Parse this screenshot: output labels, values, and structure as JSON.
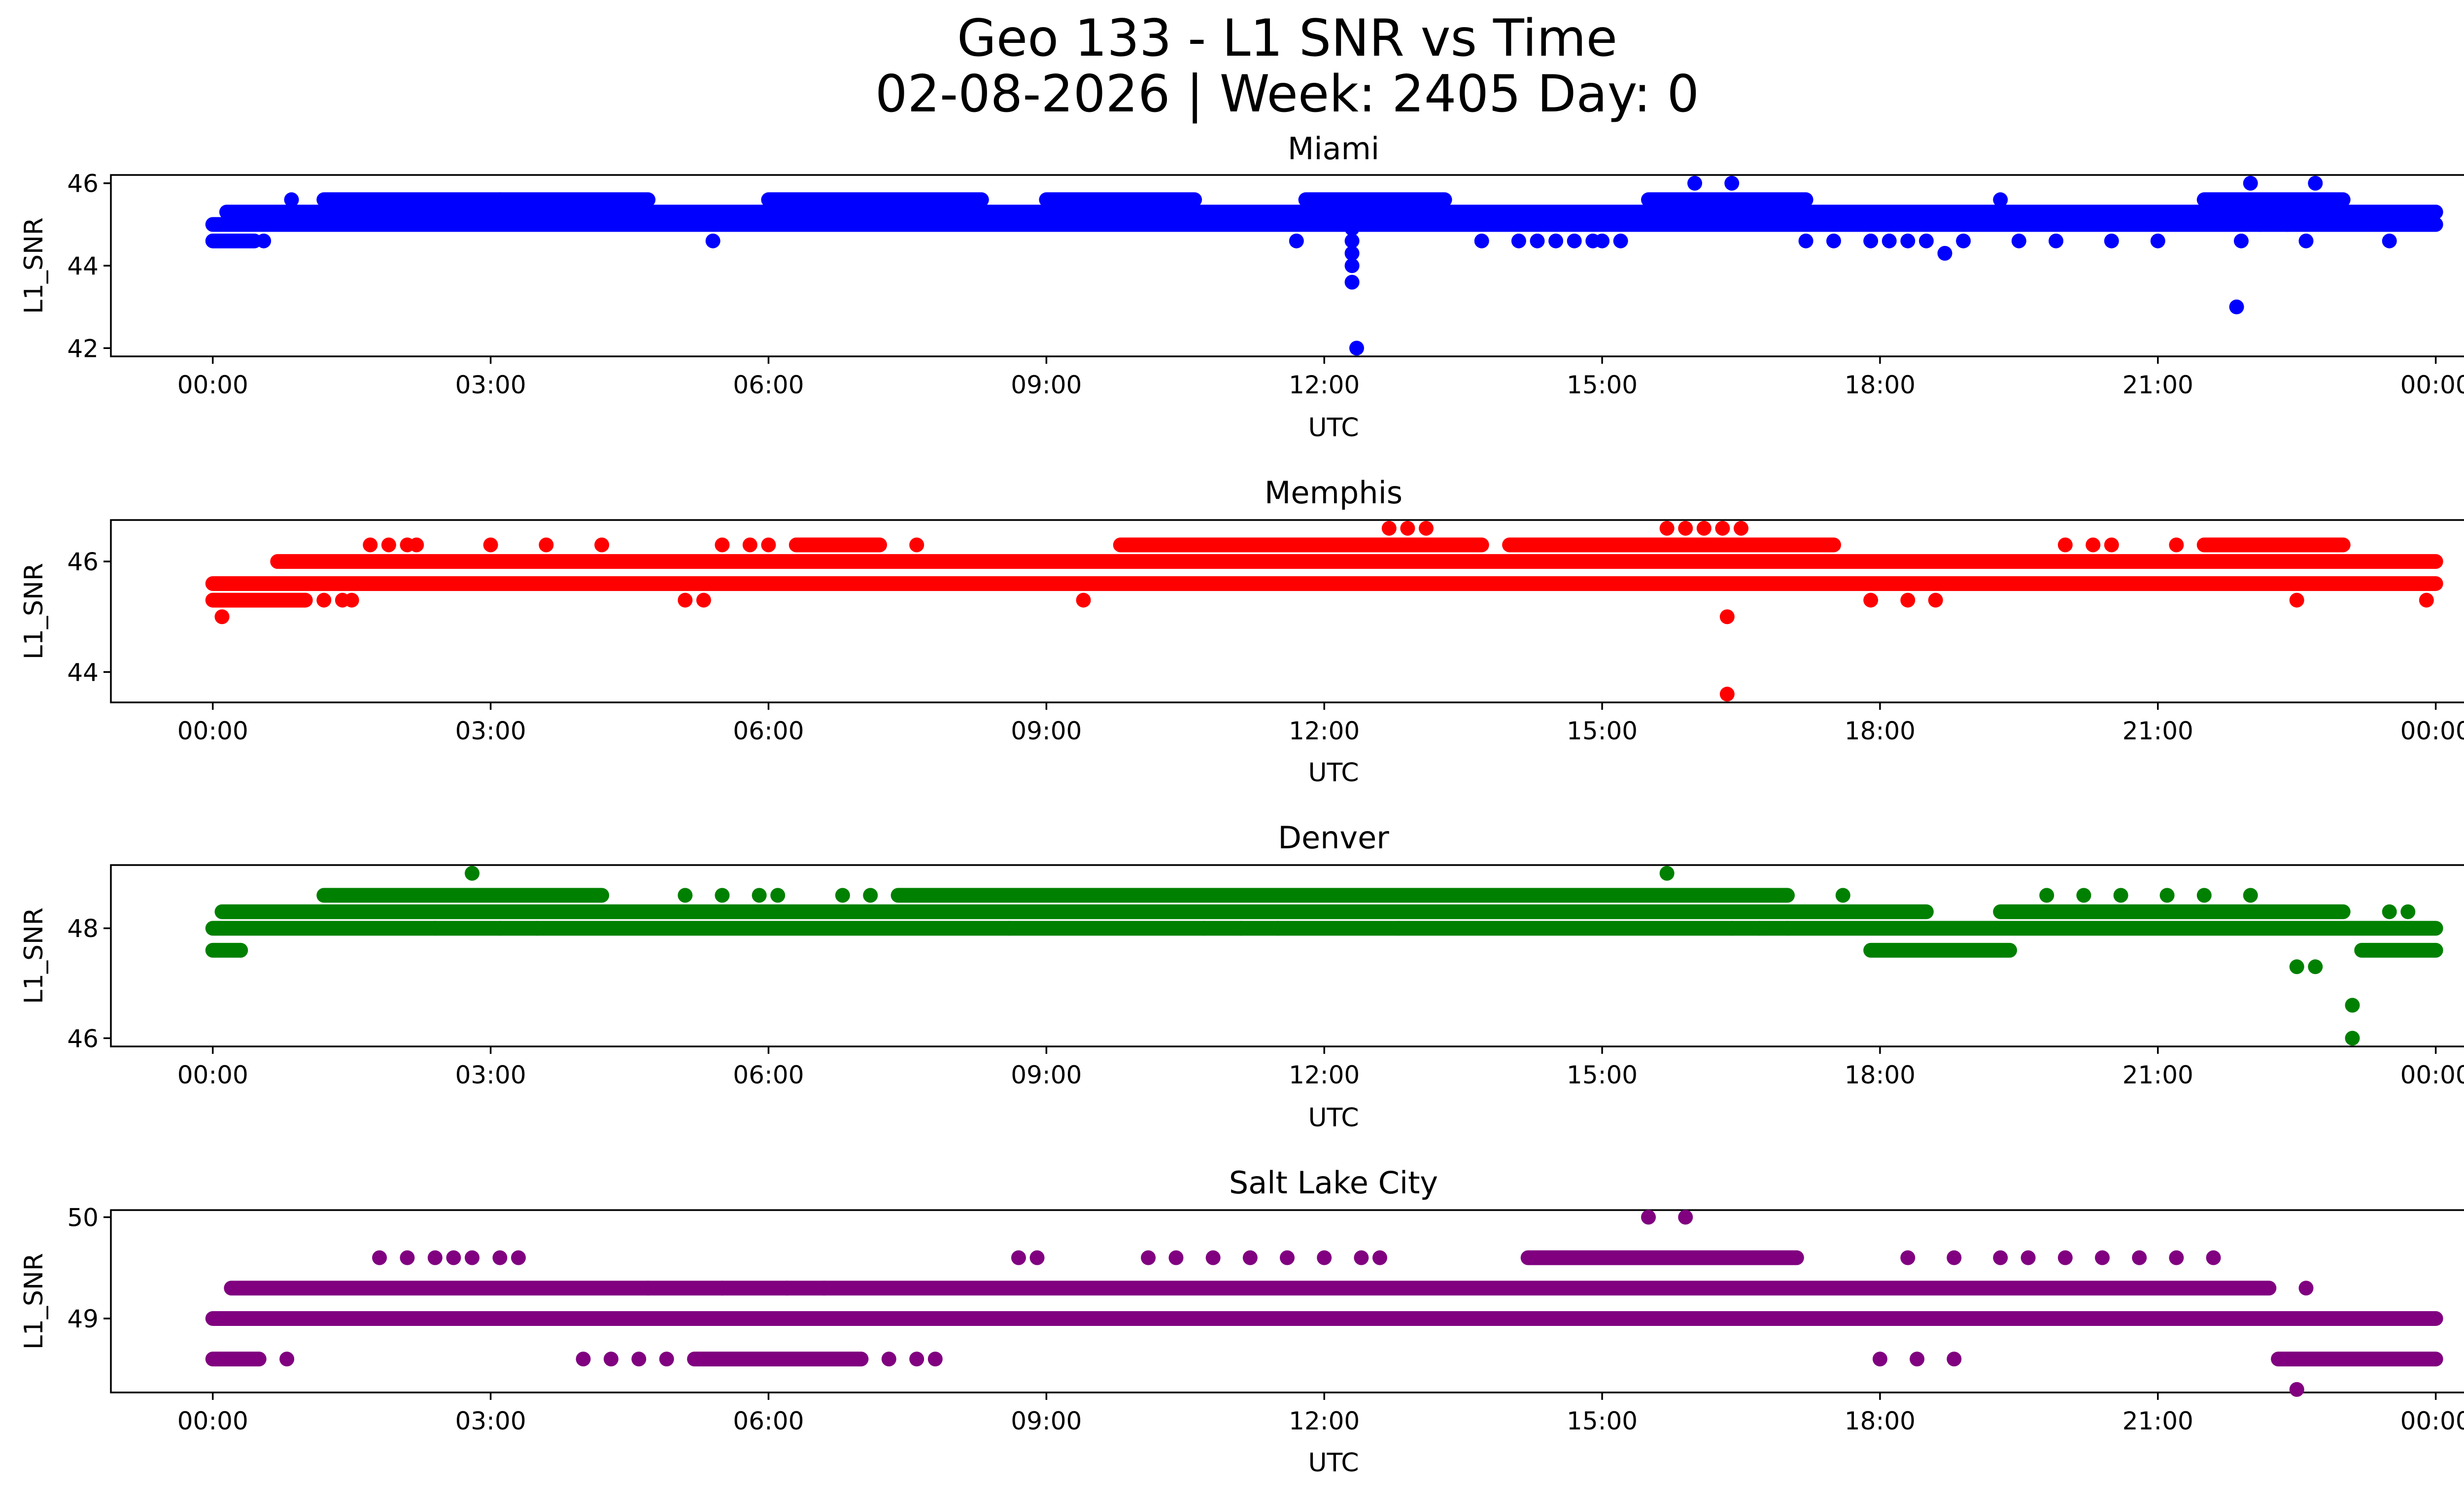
{
  "title_line1": "Geo 133 - L1 SNR vs Time",
  "title_line2": "02-08-2026 | Week: 2405 Day: 0",
  "chart_data": [
    {
      "type": "scatter",
      "title": "Miami",
      "color": "#0000ff",
      "xlabel": "UTC",
      "ylabel": "L1_SNR",
      "xlim": [
        -1.1,
        25.3
      ],
      "ylim": [
        41.8,
        46.2
      ],
      "yticks": [
        42,
        44,
        46
      ],
      "ytick_labels": [
        "42",
        "44",
        "46"
      ],
      "xticks": [
        0,
        3,
        6,
        9,
        12,
        15,
        18,
        21,
        24
      ],
      "xtick_labels": [
        "00:00",
        "03:00",
        "06:00",
        "09:00",
        "12:00",
        "15:00",
        "18:00",
        "21:00",
        "00:00"
      ],
      "bands": [
        {
          "y": 45.0,
          "from": 0.0,
          "to": 24.0
        },
        {
          "y": 45.3,
          "from": 0.15,
          "to": 24.0
        },
        {
          "y": 45.6,
          "from": 1.2,
          "to": 4.7
        },
        {
          "y": 45.6,
          "from": 6.0,
          "to": 8.3
        },
        {
          "y": 45.6,
          "from": 9.0,
          "to": 10.6
        },
        {
          "y": 45.6,
          "from": 11.8,
          "to": 13.3
        },
        {
          "y": 45.6,
          "from": 15.5,
          "to": 17.2
        },
        {
          "y": 45.6,
          "from": 21.5,
          "to": 23.0
        },
        {
          "y": 44.6,
          "from": 0.0,
          "to": 0.45
        }
      ],
      "points": [
        {
          "x": 0.55,
          "y": 44.6
        },
        {
          "x": 0.85,
          "y": 45.6
        },
        {
          "x": 3.1,
          "y": 45.6
        },
        {
          "x": 5.4,
          "y": 44.6
        },
        {
          "x": 11.7,
          "y": 44.6
        },
        {
          "x": 12.3,
          "y": 44.9
        },
        {
          "x": 12.3,
          "y": 44.6
        },
        {
          "x": 12.3,
          "y": 44.3
        },
        {
          "x": 12.3,
          "y": 44.0
        },
        {
          "x": 12.3,
          "y": 43.6
        },
        {
          "x": 12.35,
          "y": 42.0
        },
        {
          "x": 13.7,
          "y": 44.6
        },
        {
          "x": 14.1,
          "y": 44.6
        },
        {
          "x": 14.3,
          "y": 44.6
        },
        {
          "x": 14.5,
          "y": 44.6
        },
        {
          "x": 14.7,
          "y": 44.6
        },
        {
          "x": 14.9,
          "y": 44.6
        },
        {
          "x": 15.0,
          "y": 44.6
        },
        {
          "x": 15.2,
          "y": 44.6
        },
        {
          "x": 16.0,
          "y": 46.0
        },
        {
          "x": 16.4,
          "y": 46.0
        },
        {
          "x": 17.2,
          "y": 44.6
        },
        {
          "x": 17.5,
          "y": 44.6
        },
        {
          "x": 17.9,
          "y": 44.6
        },
        {
          "x": 18.1,
          "y": 44.6
        },
        {
          "x": 18.3,
          "y": 44.6
        },
        {
          "x": 18.5,
          "y": 44.6
        },
        {
          "x": 18.7,
          "y": 44.3
        },
        {
          "x": 18.9,
          "y": 44.6
        },
        {
          "x": 19.3,
          "y": 45.6
        },
        {
          "x": 19.5,
          "y": 44.6
        },
        {
          "x": 19.9,
          "y": 44.6
        },
        {
          "x": 20.5,
          "y": 44.6
        },
        {
          "x": 21.0,
          "y": 44.6
        },
        {
          "x": 21.9,
          "y": 44.6
        },
        {
          "x": 21.85,
          "y": 43.0
        },
        {
          "x": 22.0,
          "y": 46.0
        },
        {
          "x": 22.1,
          "y": 45.0
        },
        {
          "x": 22.4,
          "y": 45.0
        },
        {
          "x": 22.6,
          "y": 44.6
        },
        {
          "x": 22.7,
          "y": 46.0
        },
        {
          "x": 23.5,
          "y": 44.6
        }
      ]
    },
    {
      "type": "scatter",
      "title": "Memphis",
      "color": "#ff0000",
      "xlabel": "UTC",
      "ylabel": "L1_SNR",
      "xlim": [
        -1.1,
        25.3
      ],
      "ylim": [
        43.45,
        46.75
      ],
      "yticks": [
        44,
        46
      ],
      "ytick_labels": [
        "44",
        "46"
      ],
      "xticks": [
        0,
        3,
        6,
        9,
        12,
        15,
        18,
        21,
        24
      ],
      "xtick_labels": [
        "00:00",
        "03:00",
        "06:00",
        "09:00",
        "12:00",
        "15:00",
        "18:00",
        "21:00",
        "00:00"
      ],
      "bands": [
        {
          "y": 45.3,
          "from": 0.0,
          "to": 1.0
        },
        {
          "y": 45.6,
          "from": 0.0,
          "to": 24.0
        },
        {
          "y": 46.0,
          "from": 0.7,
          "to": 24.0
        },
        {
          "y": 46.3,
          "from": 6.3,
          "to": 7.2
        },
        {
          "y": 46.3,
          "from": 9.8,
          "to": 13.7
        },
        {
          "y": 46.3,
          "from": 14.0,
          "to": 17.5
        },
        {
          "y": 46.3,
          "from": 21.5,
          "to": 23.0
        }
      ],
      "points": [
        {
          "x": 0.1,
          "y": 45.0
        },
        {
          "x": 1.2,
          "y": 45.3
        },
        {
          "x": 1.4,
          "y": 45.3
        },
        {
          "x": 1.5,
          "y": 45.3
        },
        {
          "x": 1.7,
          "y": 46.3
        },
        {
          "x": 1.9,
          "y": 46.3
        },
        {
          "x": 2.1,
          "y": 46.3
        },
        {
          "x": 2.2,
          "y": 46.3
        },
        {
          "x": 3.0,
          "y": 46.3
        },
        {
          "x": 3.6,
          "y": 46.3
        },
        {
          "x": 4.2,
          "y": 46.3
        },
        {
          "x": 5.1,
          "y": 45.3
        },
        {
          "x": 5.3,
          "y": 45.3
        },
        {
          "x": 5.5,
          "y": 46.3
        },
        {
          "x": 5.8,
          "y": 46.3
        },
        {
          "x": 6.0,
          "y": 46.3
        },
        {
          "x": 7.6,
          "y": 46.3
        },
        {
          "x": 9.4,
          "y": 45.3
        },
        {
          "x": 12.7,
          "y": 46.6
        },
        {
          "x": 12.9,
          "y": 46.6
        },
        {
          "x": 13.1,
          "y": 46.6
        },
        {
          "x": 15.2,
          "y": 45.6
        },
        {
          "x": 15.7,
          "y": 46.6
        },
        {
          "x": 15.9,
          "y": 46.6
        },
        {
          "x": 16.1,
          "y": 46.6
        },
        {
          "x": 16.3,
          "y": 46.6
        },
        {
          "x": 16.5,
          "y": 46.6
        },
        {
          "x": 16.35,
          "y": 45.0
        },
        {
          "x": 16.35,
          "y": 43.6
        },
        {
          "x": 17.9,
          "y": 45.3
        },
        {
          "x": 18.3,
          "y": 45.3
        },
        {
          "x": 18.6,
          "y": 45.3
        },
        {
          "x": 20.0,
          "y": 46.3
        },
        {
          "x": 20.3,
          "y": 46.3
        },
        {
          "x": 20.5,
          "y": 46.3
        },
        {
          "x": 21.2,
          "y": 46.3
        },
        {
          "x": 22.5,
          "y": 45.3
        },
        {
          "x": 23.9,
          "y": 45.3
        },
        {
          "x": 14.8,
          "y": 45.6
        },
        {
          "x": 11.4,
          "y": 45.6
        },
        {
          "x": 12.1,
          "y": 45.6
        },
        {
          "x": 10.8,
          "y": 45.6
        },
        {
          "x": 11.0,
          "y": 45.6
        }
      ]
    },
    {
      "type": "scatter",
      "title": "Denver",
      "color": "#008000",
      "xlabel": "UTC",
      "ylabel": "L1_SNR",
      "xlim": [
        -1.1,
        25.3
      ],
      "ylim": [
        45.85,
        49.15
      ],
      "yticks": [
        46,
        48
      ],
      "ytick_labels": [
        "46",
        "48"
      ],
      "xticks": [
        0,
        3,
        6,
        9,
        12,
        15,
        18,
        21,
        24
      ],
      "xtick_labels": [
        "00:00",
        "03:00",
        "06:00",
        "09:00",
        "12:00",
        "15:00",
        "18:00",
        "21:00",
        "00:00"
      ],
      "bands": [
        {
          "y": 47.6,
          "from": 0.0,
          "to": 0.3
        },
        {
          "y": 48.0,
          "from": 0.0,
          "to": 24.0
        },
        {
          "y": 48.3,
          "from": 0.1,
          "to": 18.5
        },
        {
          "y": 48.3,
          "from": 19.3,
          "to": 23.0
        },
        {
          "y": 48.6,
          "from": 1.2,
          "to": 4.2
        },
        {
          "y": 48.6,
          "from": 7.4,
          "to": 17.0
        },
        {
          "y": 47.6,
          "from": 17.9,
          "to": 19.4
        },
        {
          "y": 47.6,
          "from": 23.2,
          "to": 24.0
        }
      ],
      "points": [
        {
          "x": 0.3,
          "y": 47.6
        },
        {
          "x": 2.8,
          "y": 49.0
        },
        {
          "x": 5.1,
          "y": 48.6
        },
        {
          "x": 5.5,
          "y": 48.6
        },
        {
          "x": 5.9,
          "y": 48.6
        },
        {
          "x": 6.1,
          "y": 48.6
        },
        {
          "x": 6.8,
          "y": 48.6
        },
        {
          "x": 7.1,
          "y": 48.6
        },
        {
          "x": 15.7,
          "y": 49.0
        },
        {
          "x": 17.6,
          "y": 48.6
        },
        {
          "x": 19.8,
          "y": 48.6
        },
        {
          "x": 20.2,
          "y": 48.6
        },
        {
          "x": 20.6,
          "y": 48.6
        },
        {
          "x": 21.1,
          "y": 48.6
        },
        {
          "x": 21.5,
          "y": 48.6
        },
        {
          "x": 22.0,
          "y": 48.6
        },
        {
          "x": 22.5,
          "y": 47.3
        },
        {
          "x": 22.7,
          "y": 47.3
        },
        {
          "x": 23.1,
          "y": 46.6
        },
        {
          "x": 23.1,
          "y": 46.0
        },
        {
          "x": 2.4,
          "y": 48.0
        },
        {
          "x": 3.1,
          "y": 48.0
        },
        {
          "x": 3.5,
          "y": 48.0
        },
        {
          "x": 8.6,
          "y": 48.0
        },
        {
          "x": 10.7,
          "y": 48.0
        },
        {
          "x": 11.1,
          "y": 48.0
        },
        {
          "x": 11.5,
          "y": 48.0
        },
        {
          "x": 12.8,
          "y": 48.0
        },
        {
          "x": 16.4,
          "y": 48.0
        },
        {
          "x": 16.7,
          "y": 48.0
        },
        {
          "x": 17.0,
          "y": 48.0
        },
        {
          "x": 23.5,
          "y": 48.3
        },
        {
          "x": 23.7,
          "y": 48.3
        }
      ]
    },
    {
      "type": "scatter",
      "title": "Salt Lake City",
      "color": "#800080",
      "xlabel": "UTC",
      "ylabel": "L1_SNR",
      "xlim": [
        -1.1,
        25.3
      ],
      "ylim": [
        48.27,
        50.07
      ],
      "yticks": [
        49,
        50
      ],
      "ytick_labels": [
        "49",
        "50"
      ],
      "xticks": [
        0,
        3,
        6,
        9,
        12,
        15,
        18,
        21,
        24
      ],
      "xtick_labels": [
        "00:00",
        "03:00",
        "06:00",
        "09:00",
        "12:00",
        "15:00",
        "18:00",
        "21:00",
        "00:00"
      ],
      "bands": [
        {
          "y": 48.6,
          "from": 0.0,
          "to": 0.5
        },
        {
          "y": 49.0,
          "from": 0.0,
          "to": 24.0
        },
        {
          "y": 49.3,
          "from": 0.2,
          "to": 22.2
        },
        {
          "y": 49.6,
          "from": 14.2,
          "to": 17.1
        },
        {
          "y": 48.6,
          "from": 5.2,
          "to": 7.0
        },
        {
          "y": 48.6,
          "from": 22.3,
          "to": 24.0
        }
      ],
      "points": [
        {
          "x": 0.8,
          "y": 48.6
        },
        {
          "x": 1.8,
          "y": 49.6
        },
        {
          "x": 2.1,
          "y": 49.6
        },
        {
          "x": 2.4,
          "y": 49.6
        },
        {
          "x": 2.6,
          "y": 49.6
        },
        {
          "x": 2.8,
          "y": 49.6
        },
        {
          "x": 3.1,
          "y": 49.6
        },
        {
          "x": 3.3,
          "y": 49.6
        },
        {
          "x": 4.0,
          "y": 48.6
        },
        {
          "x": 4.3,
          "y": 48.6
        },
        {
          "x": 4.6,
          "y": 48.6
        },
        {
          "x": 4.9,
          "y": 48.6
        },
        {
          "x": 7.3,
          "y": 48.6
        },
        {
          "x": 7.6,
          "y": 48.6
        },
        {
          "x": 7.8,
          "y": 48.6
        },
        {
          "x": 8.7,
          "y": 49.6
        },
        {
          "x": 8.9,
          "y": 49.6
        },
        {
          "x": 10.1,
          "y": 49.6
        },
        {
          "x": 10.4,
          "y": 49.6
        },
        {
          "x": 10.8,
          "y": 49.6
        },
        {
          "x": 11.2,
          "y": 49.6
        },
        {
          "x": 11.6,
          "y": 49.6
        },
        {
          "x": 12.0,
          "y": 49.6
        },
        {
          "x": 12.4,
          "y": 49.6
        },
        {
          "x": 12.6,
          "y": 49.6
        },
        {
          "x": 15.5,
          "y": 50.0
        },
        {
          "x": 15.9,
          "y": 50.0
        },
        {
          "x": 18.3,
          "y": 49.6
        },
        {
          "x": 18.8,
          "y": 49.6
        },
        {
          "x": 19.3,
          "y": 49.6
        },
        {
          "x": 19.6,
          "y": 49.6
        },
        {
          "x": 20.0,
          "y": 49.6
        },
        {
          "x": 20.4,
          "y": 49.6
        },
        {
          "x": 20.8,
          "y": 49.6
        },
        {
          "x": 21.2,
          "y": 49.6
        },
        {
          "x": 21.6,
          "y": 49.6
        },
        {
          "x": 18.0,
          "y": 48.6
        },
        {
          "x": 18.4,
          "y": 48.6
        },
        {
          "x": 18.8,
          "y": 48.6
        },
        {
          "x": 22.5,
          "y": 48.3
        },
        {
          "x": 22.6,
          "y": 49.3
        },
        {
          "x": 12.5,
          "y": 49.0
        },
        {
          "x": 13.5,
          "y": 49.0
        },
        {
          "x": 15.2,
          "y": 49.0
        },
        {
          "x": 10.5,
          "y": 49.0
        },
        {
          "x": 10.9,
          "y": 49.0
        },
        {
          "x": 4.7,
          "y": 49.3
        },
        {
          "x": 5.5,
          "y": 49.3
        },
        {
          "x": 6.2,
          "y": 49.3
        },
        {
          "x": 6.6,
          "y": 49.3
        },
        {
          "x": 19.5,
          "y": 49.0
        },
        {
          "x": 20.3,
          "y": 49.0
        }
      ]
    }
  ]
}
